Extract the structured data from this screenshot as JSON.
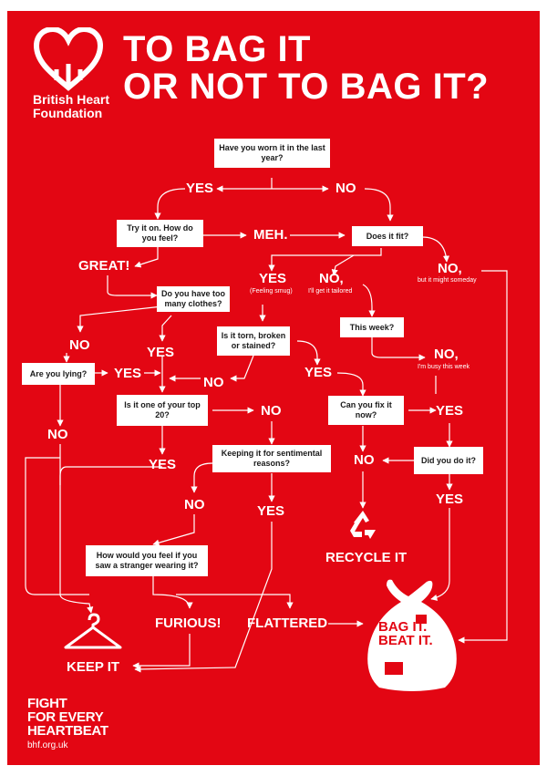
{
  "header": {
    "title_line1": "TO BAG IT",
    "title_line2": "OR NOT TO BAG IT?",
    "brand_line1": "British Heart",
    "brand_line2": "Foundation"
  },
  "nodes": {
    "worn": "Have you worn it in the last year?",
    "try_on": "Try it on. How do you feel?",
    "fit": "Does it fit?",
    "too_many": "Do you have too many clothes?",
    "torn": "Is it torn, broken or stained?",
    "this_week": "This week?",
    "lying": "Are you lying?",
    "top20": "Is it one of your top 20?",
    "fix_now": "Can you fix it now?",
    "sentimental": "Keeping it for sentimental reasons?",
    "did_you": "Did you do it?",
    "stranger": "How would you feel if you saw a stranger wearing it?"
  },
  "labels": {
    "yes_worn": "YES",
    "no_worn": "NO",
    "meh": "MEH.",
    "great": "GREAT!",
    "yes_fit": "YES",
    "yes_fit_note": "(Feeling smug)",
    "no_fit": "NO,",
    "no_fit_note": "I'll get it tailored",
    "no_someday": "NO,",
    "no_someday_note": "but it might someday",
    "no_too_many": "NO",
    "yes_too_many": "YES",
    "yes_lying": "YES",
    "no_lying": "NO",
    "no_torn": "NO",
    "yes_torn": "YES",
    "no_busy": "NO,",
    "no_busy_note": "I'm busy this week",
    "no_top20": "NO",
    "yes_top20": "YES",
    "yes_fix": "YES",
    "no_fix": "NO",
    "yes_did": "YES",
    "no_sentimental": "NO",
    "yes_sentimental": "YES",
    "furious": "FURIOUS!",
    "flattered": "FLATTERED"
  },
  "outcomes": {
    "recycle": "RECYCLE IT",
    "keep": "KEEP IT",
    "bag_line1": "BAG IT.",
    "bag_line2": "BEAT IT."
  },
  "footer": {
    "line1": "FIGHT",
    "line2": "FOR EVERY",
    "line3": "HEARTBEAT",
    "url": "bhf.org.uk"
  },
  "colors": {
    "background": "#e30613",
    "foreground": "#ffffff"
  },
  "icons": [
    "heart-logo-icon",
    "recycle-icon",
    "hanger-icon",
    "donation-bag-icon"
  ]
}
